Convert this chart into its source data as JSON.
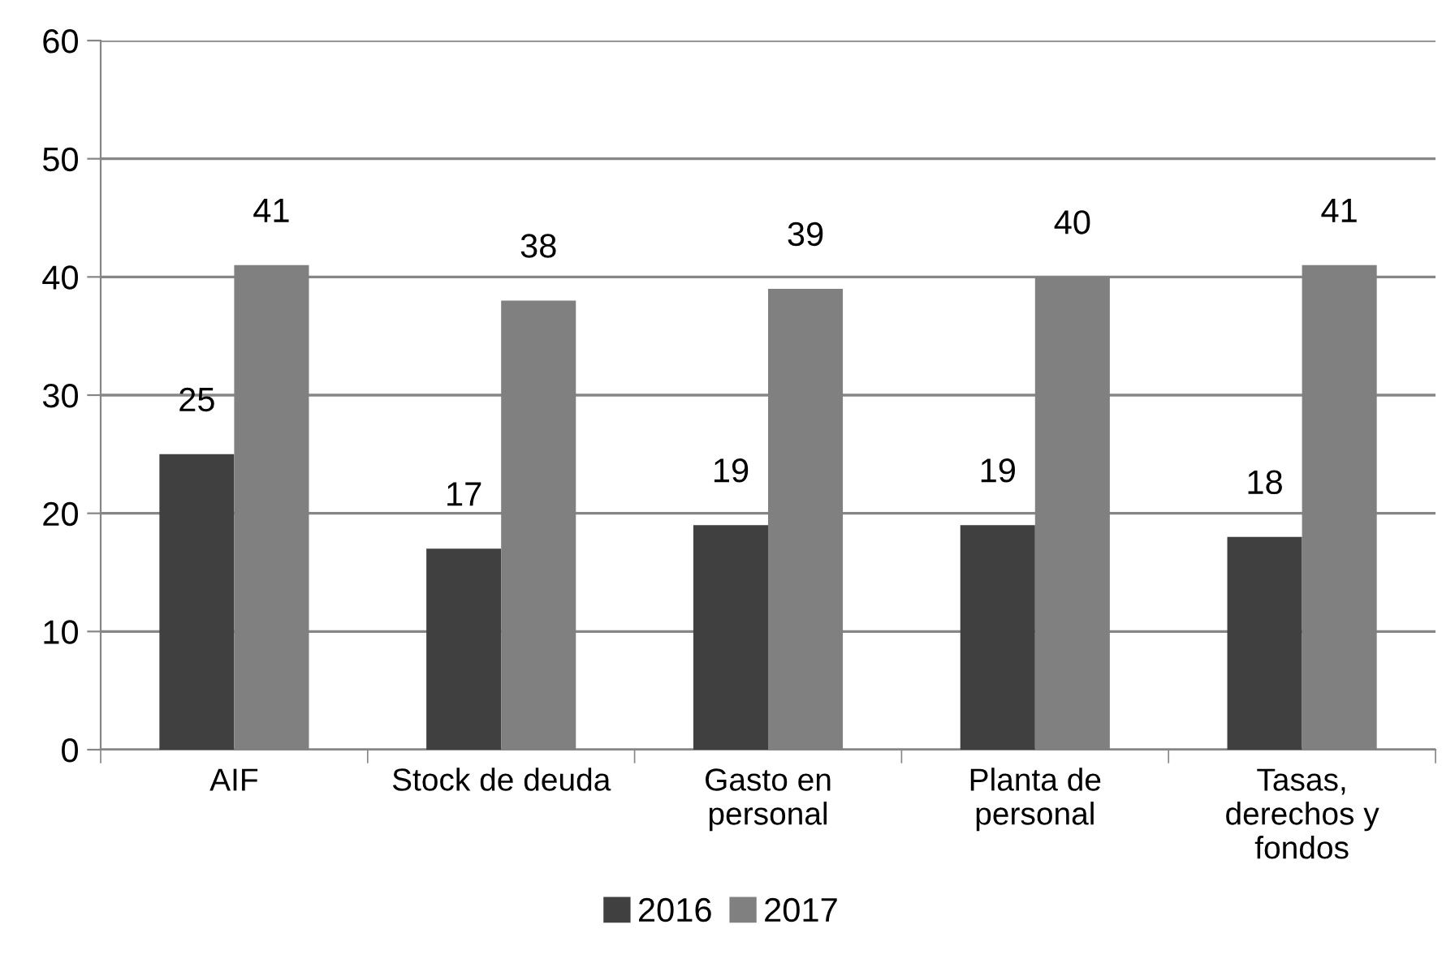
{
  "chart_data": {
    "type": "bar",
    "categories": [
      "AIF",
      "Stock de deuda",
      "Gasto en\npersonal",
      "Planta de\npersonal",
      "Tasas,\nderechos y\nfondos"
    ],
    "series": [
      {
        "name": "2016",
        "color": "#404040",
        "values": [
          25,
          17,
          19,
          19,
          18
        ]
      },
      {
        "name": "2017",
        "color": "#808080",
        "values": [
          41,
          38,
          39,
          40,
          41
        ]
      }
    ],
    "ylim": [
      0,
      60
    ],
    "yticks": [
      0,
      10,
      20,
      30,
      40,
      50,
      60
    ],
    "grid": "y",
    "legend": "bottom",
    "data_labels": true
  }
}
